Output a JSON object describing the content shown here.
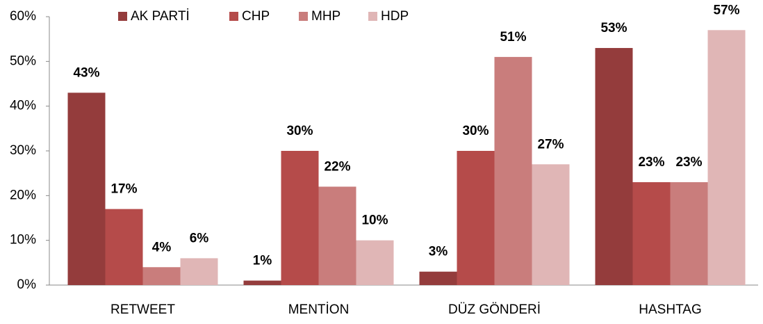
{
  "chart_data": {
    "type": "bar",
    "categories": [
      "RETWEET",
      "MENTİON",
      "DÜZ GÖNDERİ",
      "HASHTAG"
    ],
    "series": [
      {
        "name": "AK PARTİ",
        "color": "#943c3c",
        "values": [
          43,
          1,
          3,
          53
        ],
        "value_labels": [
          "43%",
          "1%",
          "3%",
          "53%"
        ]
      },
      {
        "name": "CHP",
        "color": "#b54b4a",
        "values": [
          17,
          30,
          30,
          23
        ],
        "value_labels": [
          "17%",
          "30%",
          "30%",
          "23%"
        ]
      },
      {
        "name": "MHP",
        "color": "#c97d7c",
        "values": [
          4,
          22,
          51,
          23
        ],
        "value_labels": [
          "4%",
          "22%",
          "51%",
          "23%"
        ]
      },
      {
        "name": "HDP",
        "color": "#e0b6b6",
        "values": [
          6,
          10,
          27,
          57
        ],
        "value_labels": [
          "6%",
          "10%",
          "27%",
          "57%"
        ]
      }
    ],
    "ylim": [
      0,
      60
    ],
    "yticks": [
      {
        "value": 0,
        "label": "0%"
      },
      {
        "value": 10,
        "label": "10%"
      },
      {
        "value": 20,
        "label": "20%"
      },
      {
        "value": 30,
        "label": "30%"
      },
      {
        "value": 40,
        "label": "40%"
      },
      {
        "value": 50,
        "label": "50%"
      },
      {
        "value": 60,
        "label": "60%"
      }
    ],
    "legend": "top"
  }
}
